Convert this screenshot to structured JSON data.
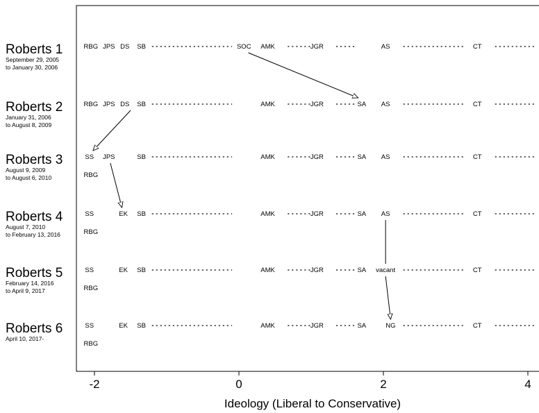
{
  "chart_data": {
    "type": "scatter",
    "title": "",
    "xlabel": "Ideology (Liberal to Conservative)",
    "xticks": [
      -2,
      0,
      2,
      4
    ],
    "tick_labels": [
      "-2",
      "0",
      "2",
      "4"
    ],
    "xlim": [
      -2.25,
      4.1
    ],
    "grid": false,
    "legend": "none",
    "courts": [
      {
        "name": "Roberts 1",
        "dates": [
          "September 29, 2005",
          "to January 30, 2006"
        ],
        "justices": [
          {
            "label": "RBG",
            "x": -2.05,
            "row": 0
          },
          {
            "label": "JPS",
            "x": -1.8,
            "row": 0
          },
          {
            "label": "DS",
            "x": -1.58,
            "row": 0
          },
          {
            "label": "SB",
            "x": -1.35,
            "row": 0
          },
          {
            "label": "SOC",
            "x": 0.07,
            "row": 0
          },
          {
            "label": "AMK",
            "x": 0.4,
            "row": 0
          },
          {
            "label": "JGR",
            "x": 1.08,
            "row": 0
          },
          {
            "label": "AS",
            "x": 2.03,
            "row": 0
          },
          {
            "label": "CT",
            "x": 3.3,
            "row": 0
          }
        ]
      },
      {
        "name": "Roberts 2",
        "dates": [
          "January 31, 2006",
          "to August 8, 2009"
        ],
        "justices": [
          {
            "label": "RBG",
            "x": -2.05,
            "row": 0
          },
          {
            "label": "JPS",
            "x": -1.8,
            "row": 0
          },
          {
            "label": "DS",
            "x": -1.58,
            "row": 0
          },
          {
            "label": "SB",
            "x": -1.35,
            "row": 0
          },
          {
            "label": "AMK",
            "x": 0.4,
            "row": 0
          },
          {
            "label": "JGR",
            "x": 1.08,
            "row": 0
          },
          {
            "label": "SA",
            "x": 1.7,
            "row": 0
          },
          {
            "label": "AS",
            "x": 2.03,
            "row": 0
          },
          {
            "label": "CT",
            "x": 3.3,
            "row": 0
          }
        ]
      },
      {
        "name": "Roberts 3",
        "dates": [
          "August 9, 2009",
          "to August 6, 2010"
        ],
        "justices": [
          {
            "label": "SS",
            "x": -2.07,
            "row": 0
          },
          {
            "label": "JPS",
            "x": -1.8,
            "row": 0
          },
          {
            "label": "SB",
            "x": -1.35,
            "row": 0
          },
          {
            "label": "AMK",
            "x": 0.4,
            "row": 0
          },
          {
            "label": "JGR",
            "x": 1.08,
            "row": 0
          },
          {
            "label": "SA",
            "x": 1.7,
            "row": 0
          },
          {
            "label": "AS",
            "x": 2.03,
            "row": 0
          },
          {
            "label": "CT",
            "x": 3.3,
            "row": 0
          },
          {
            "label": "RBG",
            "x": -2.05,
            "row": 1
          }
        ]
      },
      {
        "name": "Roberts 4",
        "dates": [
          "August 7, 2010",
          "to February 13, 2016"
        ],
        "justices": [
          {
            "label": "SS",
            "x": -2.07,
            "row": 0
          },
          {
            "label": "EK",
            "x": -1.6,
            "row": 0
          },
          {
            "label": "SB",
            "x": -1.35,
            "row": 0
          },
          {
            "label": "AMK",
            "x": 0.4,
            "row": 0
          },
          {
            "label": "JGR",
            "x": 1.08,
            "row": 0
          },
          {
            "label": "SA",
            "x": 1.7,
            "row": 0
          },
          {
            "label": "AS",
            "x": 2.03,
            "row": 0
          },
          {
            "label": "CT",
            "x": 3.3,
            "row": 0
          },
          {
            "label": "RBG",
            "x": -2.05,
            "row": 1
          }
        ]
      },
      {
        "name": "Roberts 5",
        "dates": [
          "February 14, 2016",
          "to April 9, 2017"
        ],
        "justices": [
          {
            "label": "SS",
            "x": -2.07,
            "row": 0
          },
          {
            "label": "EK",
            "x": -1.6,
            "row": 0
          },
          {
            "label": "SB",
            "x": -1.35,
            "row": 0
          },
          {
            "label": "AMK",
            "x": 0.4,
            "row": 0
          },
          {
            "label": "JGR",
            "x": 1.08,
            "row": 0
          },
          {
            "label": "SA",
            "x": 1.7,
            "row": 0
          },
          {
            "label": "vacant",
            "x": 2.03,
            "row": 0
          },
          {
            "label": "CT",
            "x": 3.3,
            "row": 0
          },
          {
            "label": "RBG",
            "x": -2.05,
            "row": 1
          }
        ]
      },
      {
        "name": "Roberts 6",
        "dates": [
          "April 10, 2017-"
        ],
        "justices": [
          {
            "label": "SS",
            "x": -2.07,
            "row": 0
          },
          {
            "label": "EK",
            "x": -1.6,
            "row": 0
          },
          {
            "label": "SB",
            "x": -1.35,
            "row": 0
          },
          {
            "label": "AMK",
            "x": 0.4,
            "row": 0
          },
          {
            "label": "JGR",
            "x": 1.08,
            "row": 0
          },
          {
            "label": "SA",
            "x": 1.7,
            "row": 0
          },
          {
            "label": "NG",
            "x": 2.1,
            "row": 0
          },
          {
            "label": "CT",
            "x": 3.3,
            "row": 0
          },
          {
            "label": "RBG",
            "x": -2.05,
            "row": 1
          }
        ]
      }
    ],
    "dotted_gaps": [
      {
        "from": -1.2,
        "to": -0.1
      },
      {
        "from": 0.68,
        "to": 0.98
      },
      {
        "from": 1.35,
        "to": 1.6
      },
      {
        "from": 2.28,
        "to": 3.12
      },
      {
        "from": 3.55,
        "to": 4.1
      }
    ],
    "transitions": [
      {
        "from_court": 0,
        "from_x": 0.13,
        "to_court": 1,
        "to_x": 1.65,
        "label": "SOC to SA"
      },
      {
        "from_court": 1,
        "from_x": -1.5,
        "to_court": 2,
        "to_x": -2.02,
        "label": "DS to SS"
      },
      {
        "from_court": 2,
        "from_x": -1.78,
        "to_court": 3,
        "to_x": -1.62,
        "label": "JPS to EK"
      },
      {
        "from_court": 3,
        "from_x": 2.03,
        "to_court": 4,
        "to_x": 2.03,
        "label": "AS to vacant",
        "arrowhead": false
      },
      {
        "from_court": 4,
        "from_x": 2.03,
        "to_court": 5,
        "to_x": 2.1,
        "label": "vacant to NG"
      }
    ]
  }
}
